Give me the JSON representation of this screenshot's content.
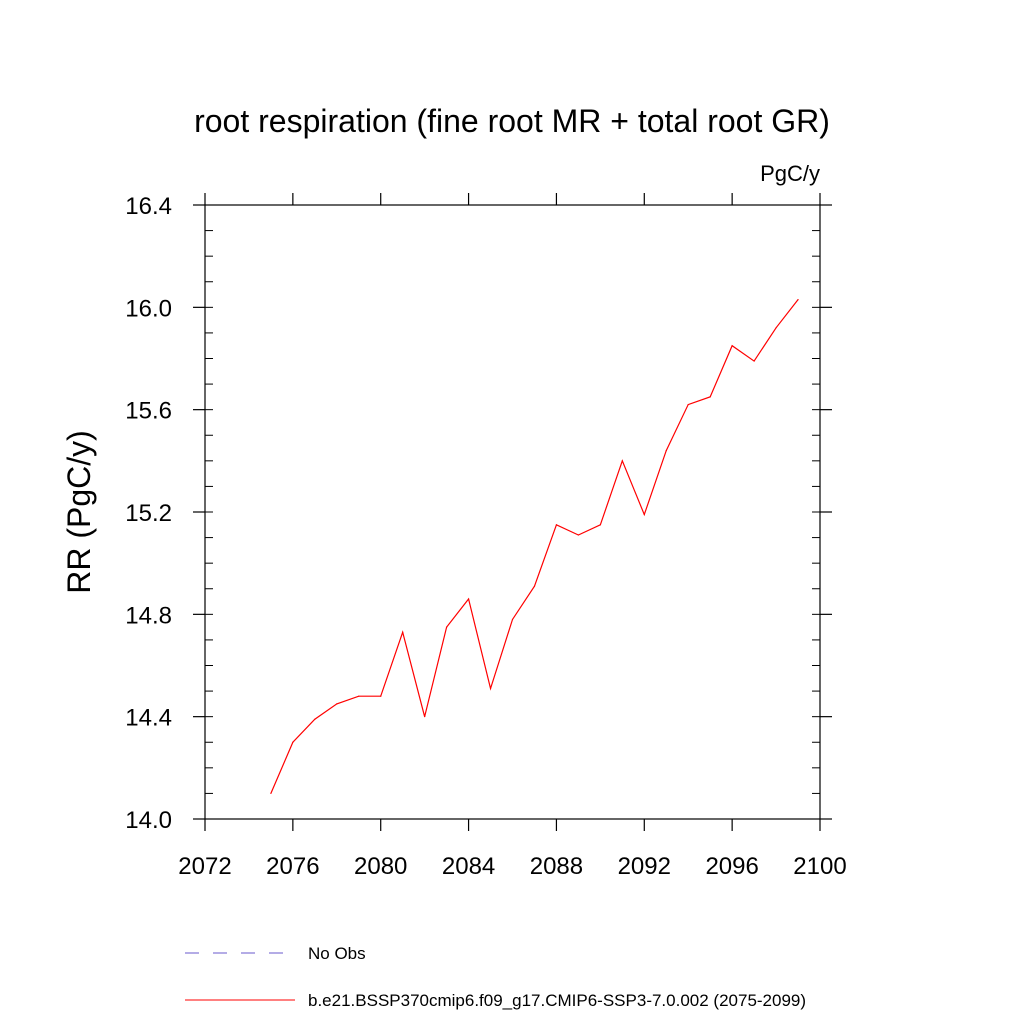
{
  "chart_data": {
    "type": "line",
    "title": "root respiration (fine root MR + total root GR)",
    "units_label": "PgC/y",
    "xlabel": "",
    "ylabel": "RR  (PgC/y)",
    "xlim": [
      2072,
      2100
    ],
    "ylim": [
      14.0,
      16.4
    ],
    "x_ticks": [
      2072,
      2076,
      2080,
      2084,
      2088,
      2092,
      2096,
      2100
    ],
    "x_tick_labels": [
      "2072",
      "2076",
      "2080",
      "2084",
      "2088",
      "2092",
      "2096",
      "2100"
    ],
    "y_ticks": [
      14.0,
      14.4,
      14.8,
      15.2,
      15.6,
      16.0,
      16.4
    ],
    "y_tick_labels": [
      "14.0",
      "14.4",
      "14.8",
      "15.2",
      "15.6",
      "16.0",
      "16.4"
    ],
    "grid": false,
    "legend_position": "bottom",
    "series": [
      {
        "name": "No Obs",
        "color": "#6a5acd",
        "style": "dashed",
        "x": [],
        "y": []
      },
      {
        "name": "b.e21.BSSP370cmip6.f09_g17.CMIP6-SSP3-7.0.002 (2075-2099)",
        "color": "#ff0000",
        "style": "solid",
        "x": [
          2075,
          2076,
          2077,
          2078,
          2079,
          2080,
          2081,
          2082,
          2083,
          2084,
          2085,
          2086,
          2087,
          2088,
          2089,
          2090,
          2091,
          2092,
          2093,
          2094,
          2095,
          2096,
          2097,
          2098,
          2099
        ],
        "y": [
          14.1,
          14.3,
          14.39,
          14.45,
          14.48,
          14.48,
          14.73,
          14.4,
          14.75,
          14.86,
          14.51,
          14.78,
          14.91,
          15.15,
          15.11,
          15.15,
          15.4,
          15.19,
          15.44,
          15.62,
          15.65,
          15.85,
          15.79,
          15.92,
          16.03
        ]
      }
    ]
  }
}
